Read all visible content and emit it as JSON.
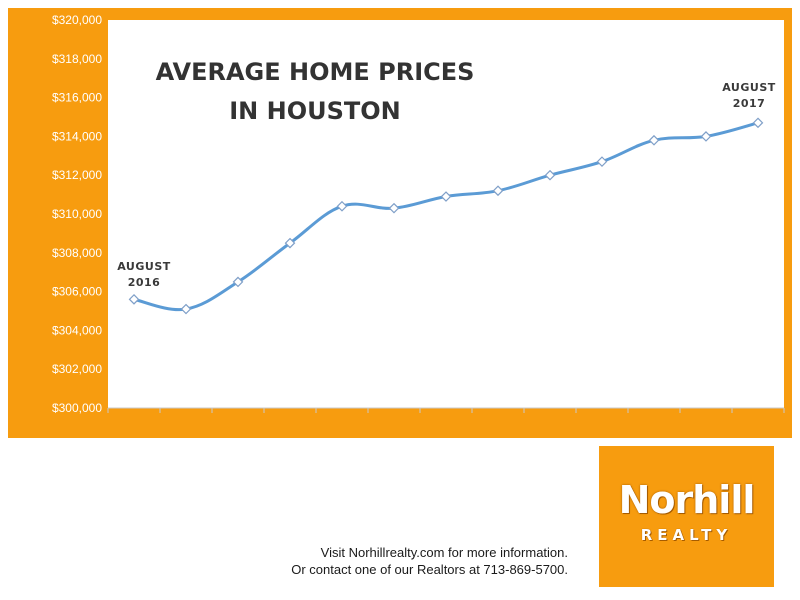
{
  "chart_data": {
    "type": "line",
    "title_lines": [
      "AVERAGE HOME PRICES",
      "IN HOUSTON"
    ],
    "xlabel": "",
    "ylabel": "",
    "ylim": [
      300000,
      320000
    ],
    "y_ticks": [
      "$300,000",
      "$302,000",
      "$304,000",
      "$306,000",
      "$308,000",
      "$310,000",
      "$312,000",
      "$314,000",
      "$316,000",
      "$318,000",
      "$320,000"
    ],
    "grid": false,
    "series": [
      {
        "values": [
          305600,
          305100,
          306500,
          308500,
          310400,
          310300,
          310900,
          311200,
          312000,
          312700,
          313800,
          314000,
          314700
        ],
        "color": "#5b9bd5"
      }
    ],
    "annotations": [
      {
        "lines": [
          "AUGUST",
          "2016"
        ],
        "point_index": 0
      },
      {
        "lines": [
          "AUGUST",
          "2017"
        ],
        "point_index": 12
      }
    ],
    "background_color": "#f79c0f",
    "plot_color": "#ffffff"
  },
  "logo": {
    "name": "Norhill",
    "sub": "REALTY"
  },
  "footer": {
    "line1": "Visit Norhillrealty.com for more information.",
    "line2": "Or contact one of our Realtors at 713-869-5700."
  }
}
